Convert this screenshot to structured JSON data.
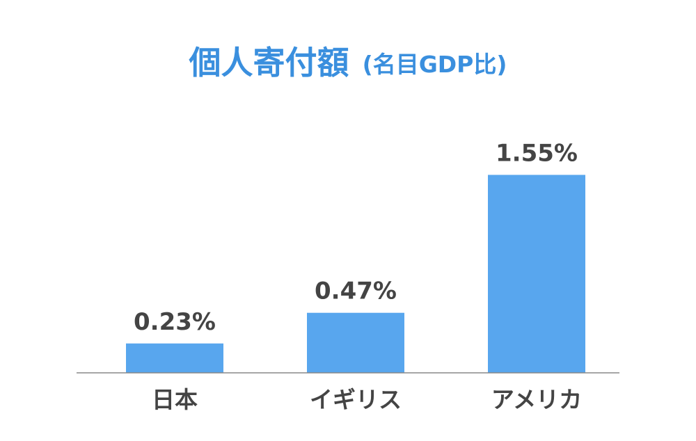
{
  "chart_data": {
    "type": "bar",
    "title": "個人寄付額",
    "subtitle": "(名目GDP比)",
    "categories": [
      "日本",
      "イギリス",
      "アメリカ"
    ],
    "values": [
      0.23,
      0.47,
      1.55
    ],
    "value_labels": [
      "0.23%",
      "0.47%",
      "1.55%"
    ],
    "unit": "%",
    "xlabel": "",
    "ylabel": "",
    "ylim": [
      0,
      1.83
    ],
    "grid": false,
    "legend": "none"
  },
  "colors": {
    "bar": "#58a6ee",
    "title": "#3a8fde",
    "label_text": "#444444",
    "axis": "#888888"
  }
}
